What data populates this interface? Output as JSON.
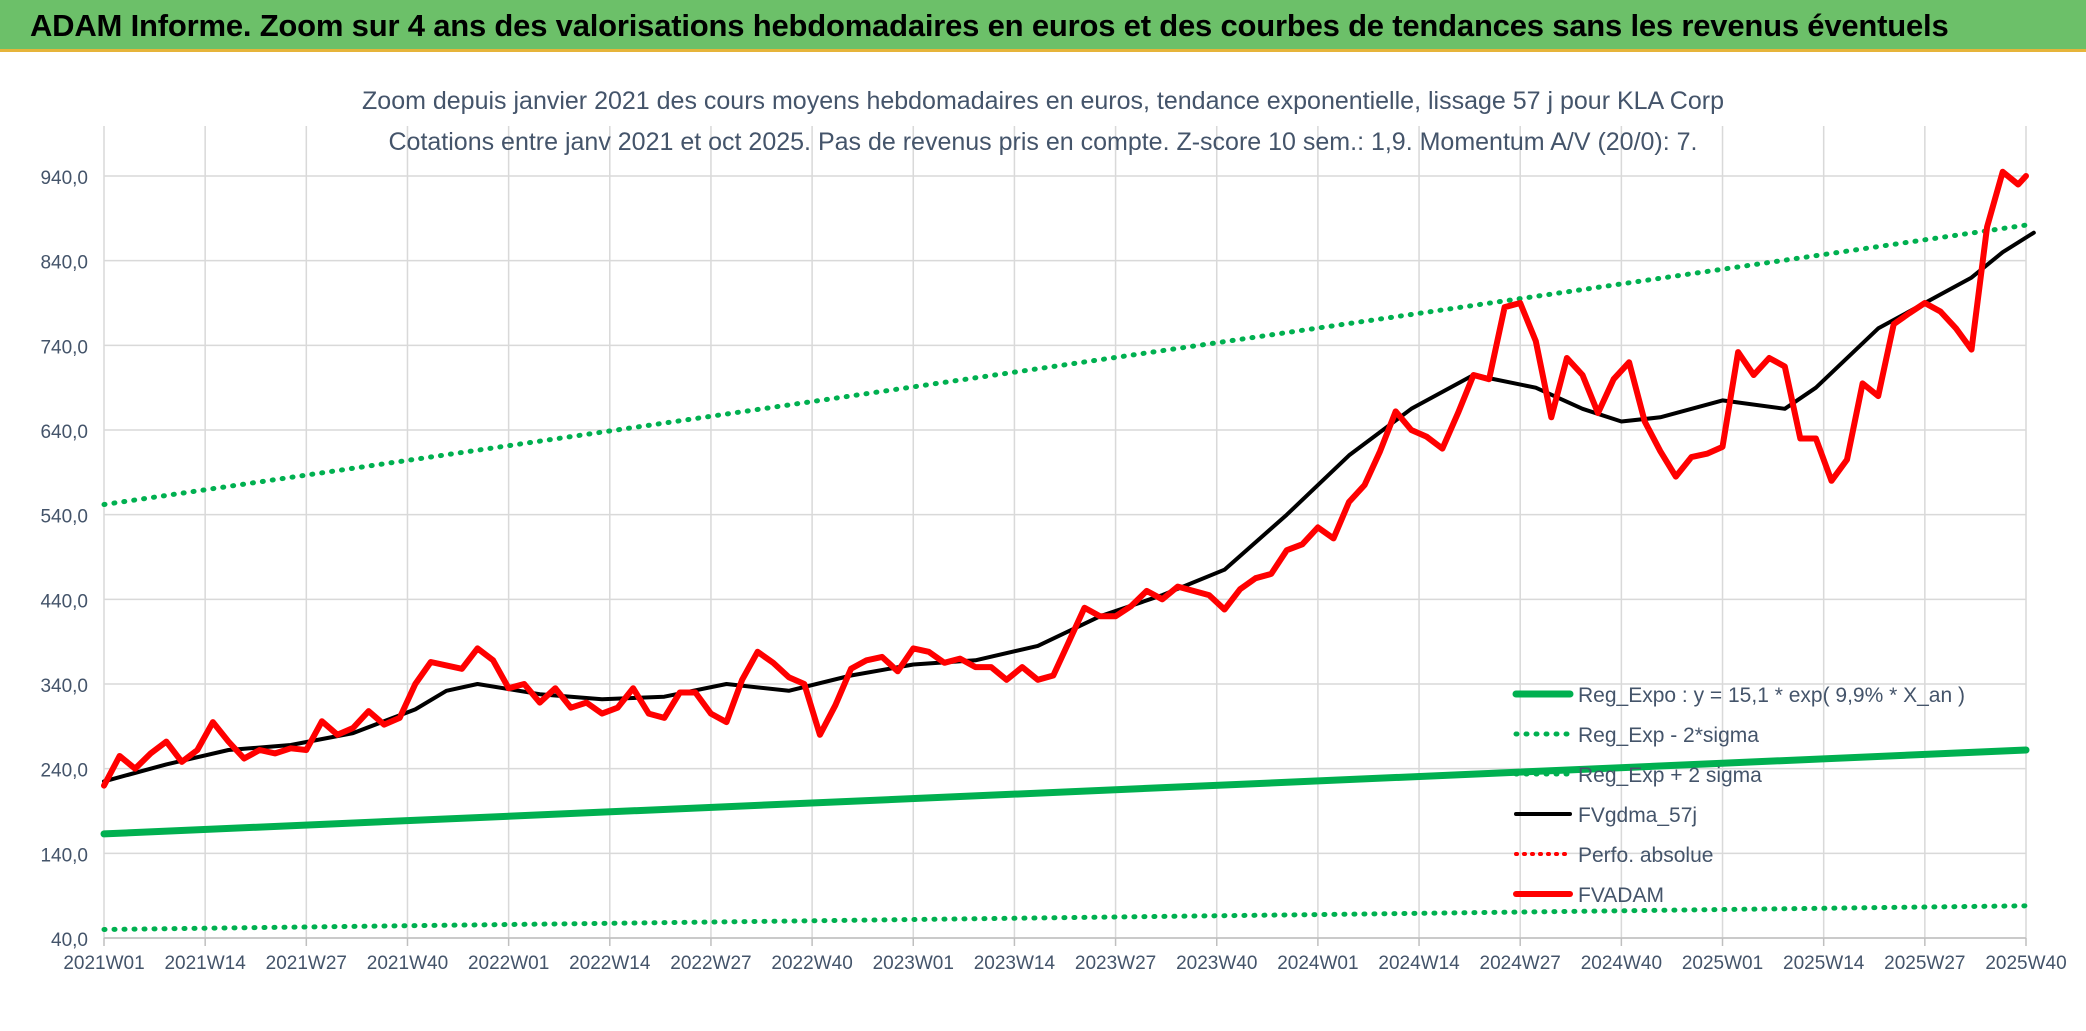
{
  "banner": {
    "title": "ADAM Informe. Zoom sur 4 ans des valorisations hebdomadaires en euros et des courbes de tendances sans les revenus éventuels"
  },
  "colors": {
    "banner_bg": "#6cc069",
    "regression": "#00b050",
    "moving_average": "#000000",
    "price": "#ff0000",
    "gridline": "#d9d9d9",
    "axis_text": "#44546a"
  },
  "chart_data": {
    "type": "line",
    "title": "Zoom depuis janvier 2021 des cours moyens hebdomadaires en euros, tendance exponentielle, lissage 57 j pour KLA Corp",
    "subtitle": "Cotations entre janv 2021 et oct 2025. Pas de revenus pris en compte. Z-score 10 sem.: 1,9. Momentum A/V (20/0): 7.",
    "xlabel": "",
    "ylabel": "",
    "ylim": [
      40,
      940
    ],
    "yticks": [
      "940,0",
      "840,0",
      "740,0",
      "640,0",
      "540,0",
      "440,0",
      "340,0",
      "240,0",
      "140,0",
      "40,0"
    ],
    "x_tick_labels": [
      "2021W01",
      "2021W14",
      "2021W27",
      "2021W40",
      "2022W01",
      "2022W14",
      "2022W27",
      "2022W40",
      "2023W01",
      "2023W14",
      "2023W27",
      "2023W40",
      "2024W01",
      "2024W14",
      "2024W27",
      "2024W40",
      "2025W01",
      "2025W14",
      "2025W27",
      "2025W40"
    ],
    "grid": true,
    "legend_position": "bottom-right",
    "series": [
      {
        "name": "Reg_Expo : y = 15,1 * exp( 9,9% *  X_an )",
        "style": "solid-thick",
        "x": [
          0,
          247
        ],
        "values": [
          163,
          262
        ]
      },
      {
        "name": "Reg_Exp - 2*sigma",
        "style": "dotted",
        "x": [
          0,
          247
        ],
        "values": [
          50,
          78
        ]
      },
      {
        "name": "Reg_Exp + 2 sigma",
        "style": "dotted",
        "x": [
          0,
          247
        ],
        "values": [
          552,
          882
        ]
      },
      {
        "name": "FVgdma_57j",
        "style": "solid",
        "x": [
          0,
          8,
          16,
          24,
          32,
          40,
          44,
          48,
          56,
          64,
          72,
          80,
          88,
          96,
          104,
          112,
          120,
          128,
          136,
          144,
          152,
          160,
          168,
          176,
          184,
          190,
          195,
          200,
          208,
          216,
          220,
          228,
          236,
          240,
          244,
          248
        ],
        "values": [
          225,
          245,
          262,
          268,
          282,
          310,
          332,
          340,
          328,
          322,
          325,
          340,
          332,
          350,
          363,
          368,
          385,
          420,
          445,
          475,
          540,
          610,
          665,
          705,
          690,
          665,
          650,
          655,
          675,
          665,
          690,
          760,
          800,
          820,
          850,
          873
        ]
      },
      {
        "name": "Perfo. absolue",
        "style": "dotted",
        "x": [],
        "values": []
      },
      {
        "name": "FVADAM",
        "style": "solid-thick",
        "x": [
          0,
          2,
          4,
          6,
          8,
          10,
          12,
          14,
          16,
          18,
          20,
          22,
          24,
          26,
          28,
          30,
          32,
          34,
          36,
          38,
          40,
          42,
          44,
          46,
          48,
          50,
          52,
          54,
          56,
          58,
          60,
          62,
          64,
          66,
          68,
          70,
          72,
          74,
          76,
          78,
          80,
          82,
          84,
          86,
          88,
          90,
          92,
          94,
          96,
          98,
          100,
          102,
          104,
          106,
          108,
          110,
          112,
          114,
          116,
          118,
          120,
          122,
          124,
          126,
          128,
          130,
          132,
          134,
          136,
          138,
          140,
          142,
          144,
          146,
          148,
          150,
          152,
          154,
          156,
          158,
          160,
          162,
          164,
          166,
          168,
          170,
          172,
          174,
          176,
          178,
          180,
          182,
          184,
          186,
          188,
          190,
          192,
          194,
          196,
          198,
          200,
          202,
          204,
          206,
          208,
          210,
          212,
          214,
          216,
          218,
          220,
          222,
          224,
          226,
          228,
          230,
          232,
          234,
          236,
          238,
          240,
          242,
          244,
          246,
          247
        ],
        "values": [
          220,
          255,
          240,
          258,
          272,
          248,
          262,
          295,
          272,
          252,
          262,
          258,
          264,
          262,
          296,
          280,
          288,
          308,
          292,
          300,
          340,
          366,
          362,
          358,
          382,
          368,
          335,
          340,
          318,
          335,
          312,
          318,
          305,
          312,
          335,
          305,
          300,
          330,
          330,
          305,
          295,
          345,
          378,
          365,
          348,
          340,
          280,
          315,
          358,
          368,
          372,
          355,
          382,
          378,
          365,
          370,
          360,
          360,
          345,
          360,
          345,
          350,
          390,
          430,
          420,
          420,
          432,
          450,
          440,
          455,
          450,
          445,
          428,
          452,
          465,
          470,
          498,
          505,
          525,
          512,
          555,
          575,
          615,
          662,
          640,
          632,
          618,
          660,
          705,
          700,
          785,
          790,
          745,
          655,
          725,
          705,
          660,
          700,
          720,
          650,
          615,
          585,
          608,
          612,
          620,
          732,
          705,
          725,
          715,
          630,
          630,
          580,
          605,
          695,
          680,
          765,
          778,
          790,
          780,
          760,
          735,
          880,
          945,
          930,
          940
        ]
      }
    ]
  }
}
